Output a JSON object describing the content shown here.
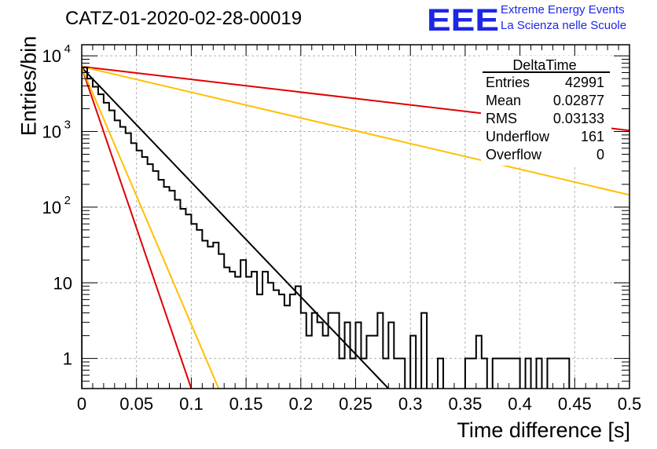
{
  "header": {
    "title": "CATZ-01-2020-02-28-00019",
    "logo_text": "EEE",
    "logo_line1": "Extreme Energy Events",
    "logo_line2": "La Scienza nelle Scuole",
    "logo_color": "#1d27e6"
  },
  "stats": {
    "name": "DeltaTime",
    "rows": [
      {
        "label": "Entries",
        "value": "42991"
      },
      {
        "label": "Mean",
        "value": "0.02877"
      },
      {
        "label": "RMS",
        "value": "0.03133"
      },
      {
        "label": "Underflow",
        "value": "161"
      },
      {
        "label": "Overflow",
        "value": "0"
      }
    ]
  },
  "chart_data": {
    "type": "line",
    "xlabel": "Time difference [s]",
    "ylabel": "Entries/bin",
    "xlim": [
      0,
      0.5
    ],
    "ylim": [
      0.4,
      14000
    ],
    "yscale": "log",
    "grid": true,
    "xticks": [
      "0",
      "0.05",
      "0.1",
      "0.15",
      "0.2",
      "0.25",
      "0.3",
      "0.35",
      "0.4",
      "0.45",
      "0.5"
    ],
    "yticks": [
      {
        "value": 1,
        "label": "1"
      },
      {
        "value": 10,
        "label": "10"
      },
      {
        "value": 100,
        "label": "10",
        "exp": "2"
      },
      {
        "value": 1000,
        "label": "10",
        "exp": "3"
      },
      {
        "value": 10000,
        "label": "10",
        "exp": "4"
      }
    ],
    "histogram": {
      "name": "DeltaTime",
      "color": "#000000",
      "bin_width": 0.005,
      "values": [
        7000,
        5000,
        3900,
        3100,
        2400,
        1900,
        1400,
        1150,
        950,
        700,
        560,
        460,
        370,
        300,
        230,
        185,
        165,
        125,
        95,
        80,
        60,
        50,
        36,
        30,
        34,
        24,
        16,
        14,
        12,
        20,
        12,
        14,
        7,
        14,
        10,
        8,
        7,
        5,
        7,
        9,
        4,
        2,
        4,
        3,
        2,
        4,
        4,
        1,
        3,
        1,
        3,
        1,
        2,
        2,
        4,
        1,
        3,
        1,
        1,
        0,
        2,
        0,
        4,
        0,
        0,
        1,
        0,
        0,
        0,
        0,
        1,
        1,
        2,
        1,
        0,
        1,
        1,
        1,
        1,
        1,
        0,
        1,
        0,
        1,
        0,
        1,
        1,
        1,
        1,
        0,
        0,
        0,
        0,
        0,
        0,
        0,
        0,
        0,
        0,
        0
      ]
    },
    "fits": [
      {
        "color": "#000000",
        "x0": 0,
        "y0": 7000,
        "x1": 0.28,
        "y1": 0.4
      },
      {
        "color": "#e00000",
        "x0": 0,
        "y0": 7000,
        "x1": 0.1,
        "y1": 0.4
      },
      {
        "color": "#ffbf00",
        "x0": 0,
        "y0": 7000,
        "x1": 0.125,
        "y1": 0.4
      },
      {
        "color": "#e00000",
        "x0": 0,
        "y0": 7200,
        "x1": 0.5,
        "y1": 1030
      },
      {
        "color": "#ffbf00",
        "x0": 0,
        "y0": 7200,
        "x1": 0.5,
        "y1": 145
      }
    ]
  }
}
